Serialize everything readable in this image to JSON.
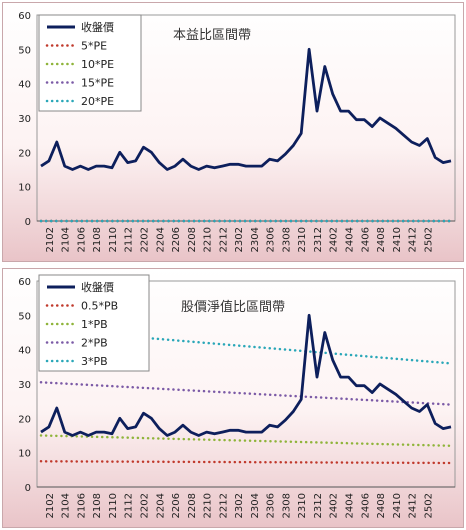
{
  "chart_data": [
    {
      "type": "line",
      "title": "本益比區間帶",
      "ylim": [
        0,
        60
      ],
      "yticks": [
        0,
        10,
        20,
        30,
        40,
        50,
        60
      ],
      "xticks": [
        "2102",
        "2104",
        "2106",
        "2108",
        "2110",
        "2112",
        "2202",
        "2204",
        "2206",
        "2208",
        "2210",
        "2212",
        "2302",
        "2304",
        "2306",
        "2308",
        "2310",
        "2312",
        "2402",
        "2404",
        "2406",
        "2408",
        "2410",
        "2412",
        "2502"
      ],
      "legend_position": "top-left",
      "series": [
        {
          "name": "收盤價",
          "style": "solid",
          "color": "#0d1f5c",
          "values": [
            16,
            17.5,
            23,
            16,
            15,
            16,
            15,
            16,
            16,
            15.5,
            20,
            17,
            17.5,
            21.5,
            20,
            17,
            15,
            16,
            18,
            16,
            15,
            16,
            15.5,
            16,
            16.5,
            16.5,
            16,
            16,
            16,
            18,
            17.5,
            19.5,
            22,
            25.5,
            50,
            32,
            45,
            37,
            32,
            32,
            29.5,
            29.5,
            27.5,
            30,
            28.5,
            27,
            25,
            23,
            22,
            24,
            18.5,
            17,
            17.5
          ]
        },
        {
          "name": "5*PE",
          "style": "dotted",
          "color": "#c0392b",
          "values": [
            0,
            0
          ]
        },
        {
          "name": "10*PE",
          "style": "dotted",
          "color": "#8fb43a",
          "values": [
            0,
            0
          ]
        },
        {
          "name": "15*PE",
          "style": "dotted",
          "color": "#7b5aa6",
          "values": [
            0,
            0
          ]
        },
        {
          "name": "20*PE",
          "style": "dotted",
          "color": "#2aa7b8",
          "values": [
            0,
            0
          ]
        }
      ]
    },
    {
      "type": "line",
      "title": "股價淨值比區間帶",
      "ylim": [
        0,
        60
      ],
      "yticks": [
        0,
        10,
        20,
        30,
        40,
        50,
        60
      ],
      "xticks": [
        "2102",
        "2104",
        "2106",
        "2108",
        "2110",
        "2112",
        "2202",
        "2204",
        "2206",
        "2208",
        "2210",
        "2212",
        "2302",
        "2304",
        "2306",
        "2308",
        "2310",
        "2312",
        "2402",
        "2404",
        "2406",
        "2408",
        "2410",
        "2412",
        "2502"
      ],
      "legend_position": "top-left",
      "series": [
        {
          "name": "收盤價",
          "style": "solid",
          "color": "#0d1f5c",
          "values": [
            16,
            17.5,
            23,
            16,
            15,
            16,
            15,
            16,
            16,
            15.5,
            20,
            17,
            17.5,
            21.5,
            20,
            17,
            15,
            16,
            18,
            16,
            15,
            16,
            15.5,
            16,
            16.5,
            16.5,
            16,
            16,
            16,
            18,
            17.5,
            19.5,
            22,
            25.5,
            50,
            32,
            45,
            37,
            32,
            32,
            29.5,
            29.5,
            27.5,
            30,
            28.5,
            27,
            25,
            23,
            22,
            24,
            18.5,
            17,
            17.5
          ]
        },
        {
          "name": "0.5*PB",
          "style": "dotted",
          "color": "#c0392b",
          "values": [
            7.5,
            7
          ]
        },
        {
          "name": "1*PB",
          "style": "dotted",
          "color": "#8fb43a",
          "values": [
            15,
            12
          ]
        },
        {
          "name": "2*PB",
          "style": "dotted",
          "color": "#7b5aa6",
          "values": [
            30.5,
            24
          ]
        },
        {
          "name": "3*PB",
          "style": "dotted",
          "color": "#2aa7b8",
          "values": [
            46,
            36
          ]
        }
      ]
    }
  ]
}
